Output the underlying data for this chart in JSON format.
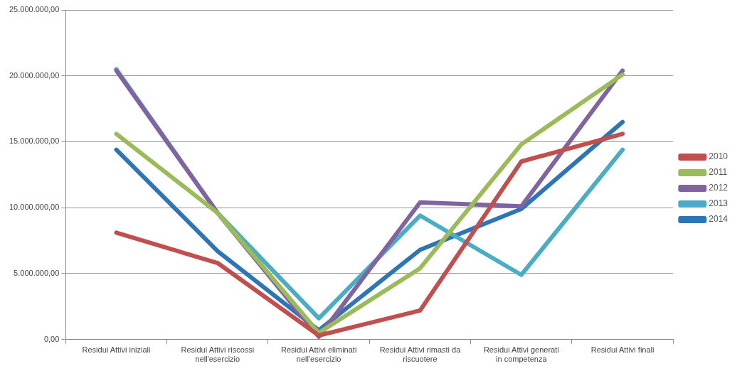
{
  "chart_data": {
    "type": "line",
    "categories": [
      "Residui Attivi iniziali",
      "Residui Attivi riscossi nell'esercizio",
      "Residui Attivi eliminati nell'esercizio",
      "Residui Attivi rimasti da riscuotere",
      "Residui Attivi generati in competenza",
      "Residui Attivi finali"
    ],
    "series": [
      {
        "name": "2010",
        "color": "#c0504d",
        "values": [
          8100000,
          5800000,
          300000,
          2200000,
          13500000,
          15600000
        ]
      },
      {
        "name": "2011",
        "color": "#9bbb59",
        "values": [
          15600000,
          9600000,
          500000,
          5400000,
          14800000,
          20100000
        ]
      },
      {
        "name": "2012",
        "color": "#8064a2",
        "values": [
          20400000,
          9600000,
          200000,
          10400000,
          10100000,
          20400000
        ]
      },
      {
        "name": "2013",
        "color": "#4bacc6",
        "values": [
          20500000,
          9600000,
          1600000,
          9400000,
          4900000,
          14400000
        ]
      },
      {
        "name": "2014",
        "color": "#2e75b6",
        "values": [
          14400000,
          6700000,
          700000,
          6800000,
          9900000,
          16500000
        ]
      }
    ],
    "ylim": [
      0,
      25000000
    ],
    "yticks": [
      {
        "value": 0,
        "label": "0,00"
      },
      {
        "value": 5000000,
        "label": "5.000.000,00"
      },
      {
        "value": 10000000,
        "label": "10.000.000,00"
      },
      {
        "value": 15000000,
        "label": "15.000.000,00"
      },
      {
        "value": 20000000,
        "label": "20.000.000,00"
      },
      {
        "value": 25000000,
        "label": "25.000.000,00"
      }
    ],
    "grid": "y",
    "legend": "right",
    "marker": "none",
    "line_style": "solid"
  }
}
